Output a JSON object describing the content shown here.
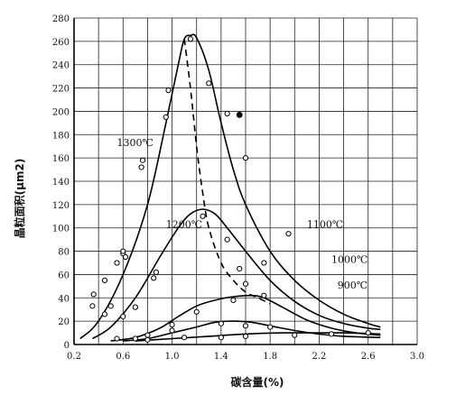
{
  "chart_data": {
    "type": "line",
    "title": "",
    "xlabel": "碳含量(%)",
    "ylabel": "晶粒面积(μm2)",
    "xlim": [
      0.2,
      3.0
    ],
    "ylim": [
      0,
      280
    ],
    "x_ticks": [
      "0.2",
      "0.6",
      "1.0",
      "1.4",
      "1.8",
      "2.2",
      "2.6",
      "3.0"
    ],
    "y_ticks": [
      "0",
      "20",
      "40",
      "60",
      "80",
      "100",
      "120",
      "140",
      "160",
      "180",
      "200",
      "220",
      "240",
      "260",
      "280"
    ],
    "grid": true,
    "series": [
      {
        "name": "1300℃",
        "curve": [
          [
            0.25,
            5
          ],
          [
            0.4,
            20
          ],
          [
            0.6,
            60
          ],
          [
            0.8,
            120
          ],
          [
            0.95,
            190
          ],
          [
            1.05,
            240
          ],
          [
            1.1,
            262
          ],
          [
            1.15,
            265
          ],
          [
            1.2,
            263
          ],
          [
            1.3,
            235
          ],
          [
            1.4,
            190
          ],
          [
            1.5,
            150
          ],
          [
            1.6,
            120
          ],
          [
            1.8,
            80
          ],
          [
            2.0,
            55
          ],
          [
            2.2,
            38
          ],
          [
            2.4,
            26
          ],
          [
            2.6,
            18
          ],
          [
            2.7,
            15
          ]
        ],
        "points": [
          [
            0.35,
            33
          ],
          [
            0.36,
            43
          ],
          [
            0.45,
            55
          ],
          [
            0.5,
            33
          ],
          [
            0.55,
            70
          ],
          [
            0.6,
            78
          ],
          [
            0.6,
            80
          ],
          [
            0.75,
            152
          ],
          [
            0.76,
            158
          ],
          [
            0.95,
            195
          ],
          [
            0.97,
            218
          ],
          [
            1.15,
            262
          ],
          [
            1.3,
            224
          ],
          [
            1.45,
            198
          ],
          [
            1.6,
            160
          ]
        ],
        "filled_points": [
          [
            1.55,
            197
          ]
        ]
      },
      {
        "name": "1200℃",
        "curve": [
          [
            0.35,
            5
          ],
          [
            0.5,
            15
          ],
          [
            0.7,
            40
          ],
          [
            0.9,
            75
          ],
          [
            1.05,
            100
          ],
          [
            1.15,
            112
          ],
          [
            1.25,
            116
          ],
          [
            1.35,
            112
          ],
          [
            1.45,
            100
          ],
          [
            1.6,
            80
          ],
          [
            1.8,
            55
          ],
          [
            2.0,
            37
          ],
          [
            2.2,
            25
          ],
          [
            2.4,
            18
          ],
          [
            2.6,
            14
          ],
          [
            2.7,
            13
          ]
        ],
        "points": [
          [
            0.45,
            26
          ],
          [
            0.6,
            24
          ],
          [
            0.62,
            75
          ],
          [
            0.7,
            32
          ],
          [
            0.85,
            57
          ],
          [
            0.87,
            62
          ],
          [
            1.25,
            110
          ],
          [
            1.45,
            90
          ],
          [
            1.55,
            65
          ],
          [
            1.6,
            52
          ],
          [
            1.75,
            70
          ],
          [
            1.95,
            95
          ]
        ]
      },
      {
        "name": "1100℃",
        "curve": [
          [
            0.5,
            3
          ],
          [
            0.7,
            6
          ],
          [
            0.9,
            14
          ],
          [
            1.05,
            24
          ],
          [
            1.2,
            33
          ],
          [
            1.35,
            38
          ],
          [
            1.5,
            41
          ],
          [
            1.65,
            42
          ],
          [
            1.75,
            40
          ],
          [
            1.9,
            32
          ],
          [
            2.1,
            21
          ],
          [
            2.3,
            14
          ],
          [
            2.5,
            10
          ],
          [
            2.7,
            8
          ]
        ],
        "points": [
          [
            0.8,
            8
          ],
          [
            1.0,
            17
          ],
          [
            1.2,
            28
          ],
          [
            1.5,
            38
          ],
          [
            1.75,
            42
          ]
        ]
      },
      {
        "name": "1000℃",
        "curve": [
          [
            0.6,
            3
          ],
          [
            0.8,
            5
          ],
          [
            1.0,
            10
          ],
          [
            1.2,
            15
          ],
          [
            1.35,
            19
          ],
          [
            1.5,
            20
          ],
          [
            1.65,
            19
          ],
          [
            1.8,
            16
          ],
          [
            2.0,
            12
          ],
          [
            2.2,
            9
          ],
          [
            2.4,
            7
          ],
          [
            2.7,
            6
          ]
        ],
        "points": [
          [
            0.7,
            5
          ],
          [
            1.0,
            12
          ],
          [
            1.4,
            18
          ],
          [
            1.6,
            16
          ],
          [
            1.8,
            15
          ]
        ]
      },
      {
        "name": "900℃",
        "curve": [
          [
            0.7,
            3
          ],
          [
            1.0,
            5
          ],
          [
            1.3,
            7
          ],
          [
            1.6,
            9
          ],
          [
            1.9,
            10
          ],
          [
            2.2,
            10
          ],
          [
            2.4,
            10
          ],
          [
            2.7,
            9
          ]
        ],
        "points": [
          [
            0.55,
            5
          ],
          [
            0.8,
            4
          ],
          [
            1.1,
            6
          ],
          [
            1.4,
            6
          ],
          [
            1.6,
            7
          ],
          [
            2.0,
            8
          ],
          [
            2.3,
            9
          ],
          [
            2.6,
            10
          ]
        ]
      },
      {
        "name": "dashed",
        "style": "dashed",
        "curve": [
          [
            1.1,
            262
          ],
          [
            1.15,
            220
          ],
          [
            1.2,
            170
          ],
          [
            1.25,
            130
          ],
          [
            1.3,
            100
          ],
          [
            1.4,
            70
          ],
          [
            1.5,
            55
          ],
          [
            1.6,
            45
          ],
          [
            1.7,
            40
          ],
          [
            1.8,
            35
          ]
        ]
      }
    ],
    "annotations": [
      {
        "text": "1300℃",
        "at": [
          0.55,
          170
        ]
      },
      {
        "text": "1200℃",
        "at": [
          0.95,
          100
        ]
      },
      {
        "text": "1100℃",
        "at": [
          2.1,
          100
        ]
      },
      {
        "text": "1000℃",
        "at": [
          2.3,
          70
        ]
      },
      {
        "text": "900℃",
        "at": [
          2.35,
          48
        ]
      }
    ]
  }
}
